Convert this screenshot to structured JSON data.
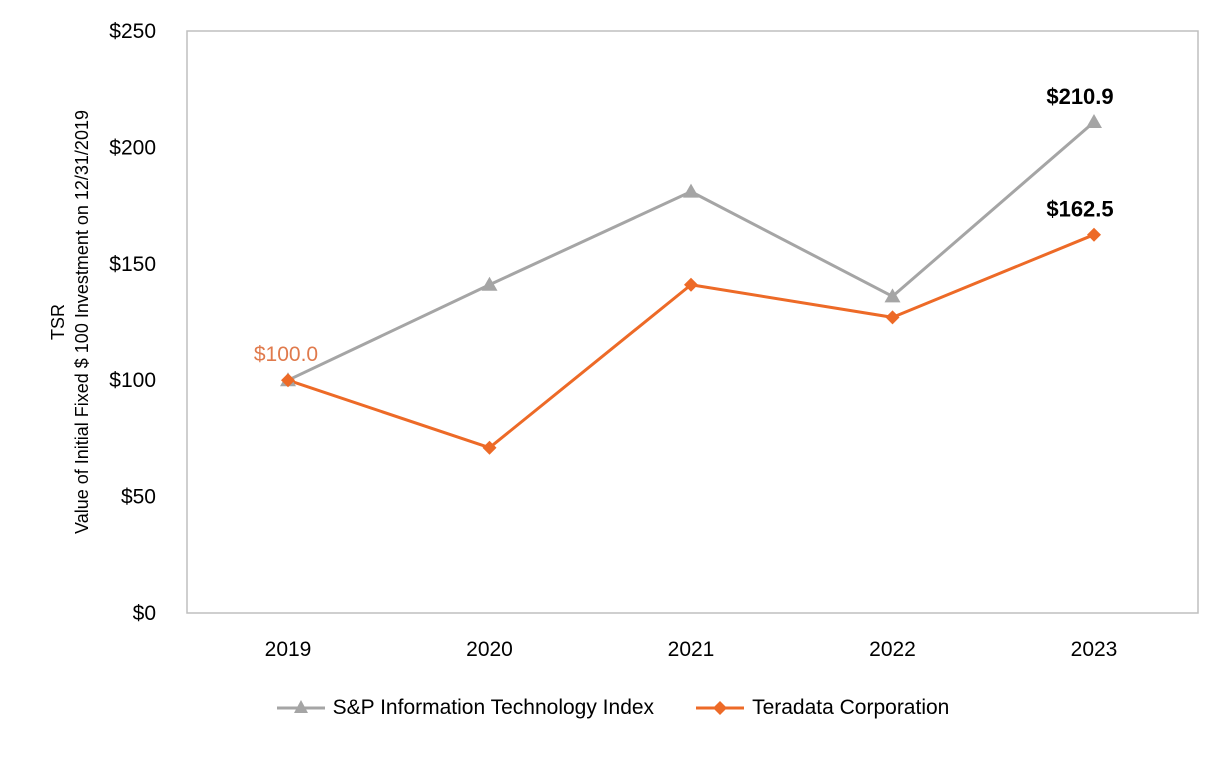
{
  "chart_data": {
    "type": "line",
    "title": "",
    "xlabel": "",
    "ylabel_line1": "TSR",
    "ylabel_line2": "Value of Initial Fixed $ 100 Investment on 12/31/2019",
    "categories": [
      "2019",
      "2020",
      "2021",
      "2022",
      "2023"
    ],
    "ylim": [
      0,
      250
    ],
    "yticks": [
      0,
      50,
      100,
      150,
      200,
      250
    ],
    "ytick_labels": [
      "$0",
      "$50",
      "$100",
      "$150",
      "$200",
      "$250"
    ],
    "series": [
      {
        "name": "S&P Information Technology Index",
        "values": [
          100.0,
          141.0,
          181.0,
          136.0,
          210.9
        ],
        "color": "#a5a5a5",
        "marker": "triangle"
      },
      {
        "name": "Teradata Corporation",
        "values": [
          100.0,
          71.0,
          141.0,
          127.0,
          162.5
        ],
        "color": "#ed6a27",
        "marker": "diamond"
      }
    ],
    "annotations": [
      {
        "text": "$210.9",
        "series": 0,
        "index": 4,
        "style": "bold"
      },
      {
        "text": "$162.5",
        "series": 1,
        "index": 4,
        "style": "bold"
      },
      {
        "text": "$100.0",
        "series": 1,
        "index": 0,
        "style": "orange"
      }
    ],
    "annotation_color": "#e07a4c",
    "legend_position": "bottom"
  }
}
